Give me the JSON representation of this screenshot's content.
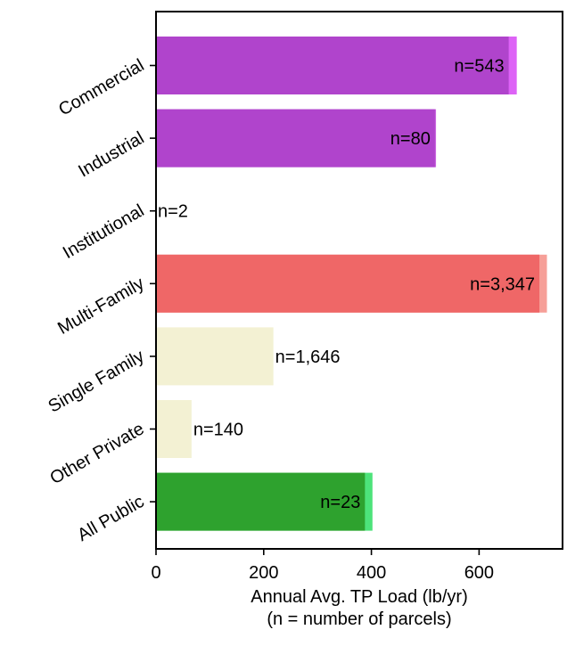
{
  "chart_data": {
    "type": "bar",
    "orientation": "horizontal",
    "categories": [
      "Commercial",
      "Industrial",
      "Institutional",
      "Multi-Family",
      "Single Family",
      "Other Private",
      "All Public"
    ],
    "values": [
      655,
      518,
      0,
      712,
      218,
      66,
      388
    ],
    "upper_values": [
      670,
      520,
      0,
      726,
      218,
      66,
      402
    ],
    "bar_colors": [
      "#b044cc",
      "#b044cc",
      "#b044cc",
      "#ef6767",
      "#f3f1d3",
      "#f3f1d3",
      "#2ea22e"
    ],
    "extension_colors": [
      "#dd63f6",
      "#c865df",
      "#c865df",
      "#f69f98",
      "#f3f1d3",
      "#f3f1d3",
      "#4de37a"
    ],
    "labels": [
      "n=543",
      "n=80",
      "n=2",
      "n=3,347",
      "n=1,646",
      "n=140",
      "n=23"
    ],
    "label_placement": [
      "inside",
      "inside",
      "outside",
      "inside",
      "outside",
      "outside",
      "inside"
    ],
    "xlim": [
      0,
      755
    ],
    "xticks": [
      0,
      200,
      400,
      600
    ],
    "xlabel": "Annual Avg. TP Load (lb/yr)",
    "xlabel_note": "(n = number of parcels)",
    "ylabel": "",
    "grid": false,
    "legend": "none"
  }
}
